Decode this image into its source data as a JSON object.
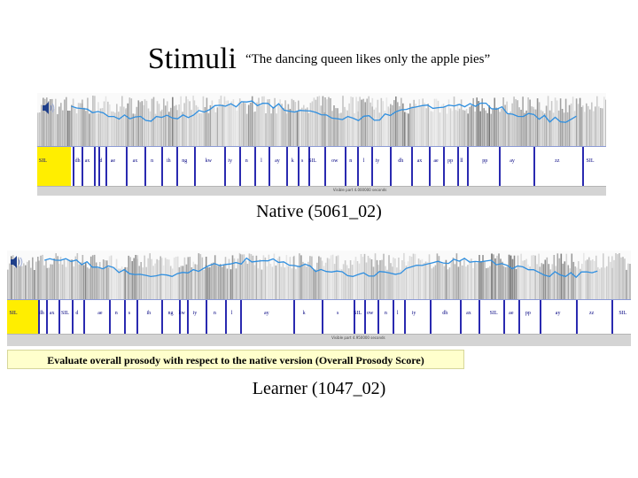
{
  "stimuli": {
    "title": "Stimuli",
    "sentence": "“The dancing queen likes only the apple pies”"
  },
  "native": {
    "caption": "Native (5061_02)",
    "status": "Visible part 4.000000 seconds",
    "labels": [
      {
        "t": "SIL",
        "x": 0.01
      },
      {
        "t": "dh",
        "x": 0.071
      },
      {
        "t": "ax",
        "x": 0.088
      },
      {
        "t": "d",
        "x": 0.112
      },
      {
        "t": "ae",
        "x": 0.133
      },
      {
        "t": "ax",
        "x": 0.172
      },
      {
        "t": "n",
        "x": 0.202
      },
      {
        "t": "ih",
        "x": 0.231
      },
      {
        "t": "ng",
        "x": 0.259
      },
      {
        "t": "kw",
        "x": 0.301
      },
      {
        "t": "iy",
        "x": 0.339
      },
      {
        "t": "n",
        "x": 0.368
      },
      {
        "t": "l",
        "x": 0.394
      },
      {
        "t": "ay",
        "x": 0.422
      },
      {
        "t": "k",
        "x": 0.449
      },
      {
        "t": "s",
        "x": 0.466
      },
      {
        "t": "SIL",
        "x": 0.484
      },
      {
        "t": "ow",
        "x": 0.523
      },
      {
        "t": "n",
        "x": 0.551
      },
      {
        "t": "l",
        "x": 0.574
      },
      {
        "t": "iy",
        "x": 0.598
      },
      {
        "t": "dh",
        "x": 0.639
      },
      {
        "t": "ax",
        "x": 0.672
      },
      {
        "t": "ae",
        "x": 0.701
      },
      {
        "t": "pp",
        "x": 0.726
      },
      {
        "t": "ll",
        "x": 0.746
      },
      {
        "t": "pp",
        "x": 0.787
      },
      {
        "t": "ay",
        "x": 0.835
      },
      {
        "t": "zz",
        "x": 0.914
      },
      {
        "t": "SIL",
        "x": 0.972
      }
    ],
    "boundaries": [
      0.062,
      0.078,
      0.1,
      0.107,
      0.12,
      0.155,
      0.188,
      0.218,
      0.245,
      0.275,
      0.328,
      0.355,
      0.382,
      0.407,
      0.437,
      0.458,
      0.476,
      0.505,
      0.541,
      0.563,
      0.588,
      0.62,
      0.658,
      0.688,
      0.713,
      0.738,
      0.756,
      0.812,
      0.872,
      0.958
    ]
  },
  "learner": {
    "caption": "Learner (1047_02)",
    "status": "Visible part 4.950000 seconds",
    "labels": [
      {
        "t": "SIL",
        "x": 0.01
      },
      {
        "t": "dh",
        "x": 0.055
      },
      {
        "t": "ax",
        "x": 0.072
      },
      {
        "t": "SIL",
        "x": 0.093
      },
      {
        "t": "d",
        "x": 0.112
      },
      {
        "t": "ae",
        "x": 0.149
      },
      {
        "t": "n",
        "x": 0.175
      },
      {
        "t": "s",
        "x": 0.196
      },
      {
        "t": "ih",
        "x": 0.227
      },
      {
        "t": "ng",
        "x": 0.262
      },
      {
        "t": "kw",
        "x": 0.28
      },
      {
        "t": "iy",
        "x": 0.301
      },
      {
        "t": "n",
        "x": 0.333
      },
      {
        "t": "l",
        "x": 0.36
      },
      {
        "t": "ay",
        "x": 0.416
      },
      {
        "t": "k",
        "x": 0.476
      },
      {
        "t": "s",
        "x": 0.53
      },
      {
        "t": "SIL",
        "x": 0.562
      },
      {
        "t": "ow",
        "x": 0.582
      },
      {
        "t": "n",
        "x": 0.607
      },
      {
        "t": "l",
        "x": 0.626
      },
      {
        "t": "iy",
        "x": 0.652
      },
      {
        "t": "dh",
        "x": 0.702
      },
      {
        "t": "ax",
        "x": 0.74
      },
      {
        "t": "SIL",
        "x": 0.78
      },
      {
        "t": "ae",
        "x": 0.808
      },
      {
        "t": "pp",
        "x": 0.835
      },
      {
        "t": "ay",
        "x": 0.883
      },
      {
        "t": "zz",
        "x": 0.937
      },
      {
        "t": "SIL",
        "x": 0.987
      }
    ],
    "boundaries": [
      0.05,
      0.063,
      0.082,
      0.103,
      0.122,
      0.163,
      0.188,
      0.208,
      0.247,
      0.275,
      0.289,
      0.318,
      0.349,
      0.373,
      0.459,
      0.504,
      0.555,
      0.572,
      0.594,
      0.618,
      0.636,
      0.677,
      0.726,
      0.756,
      0.795,
      0.82,
      0.853,
      0.912,
      0.969
    ]
  },
  "instruction": "Evaluate overall prosody with respect to the native version (Overall Prosody Score)",
  "colors": {
    "sil_highlight": "#ffee00",
    "boundary": "#2a2ab0",
    "pitch": "#2f8fe0",
    "instruction_bg": "#ffffcc"
  },
  "icons": {
    "play": "speaker-icon"
  }
}
